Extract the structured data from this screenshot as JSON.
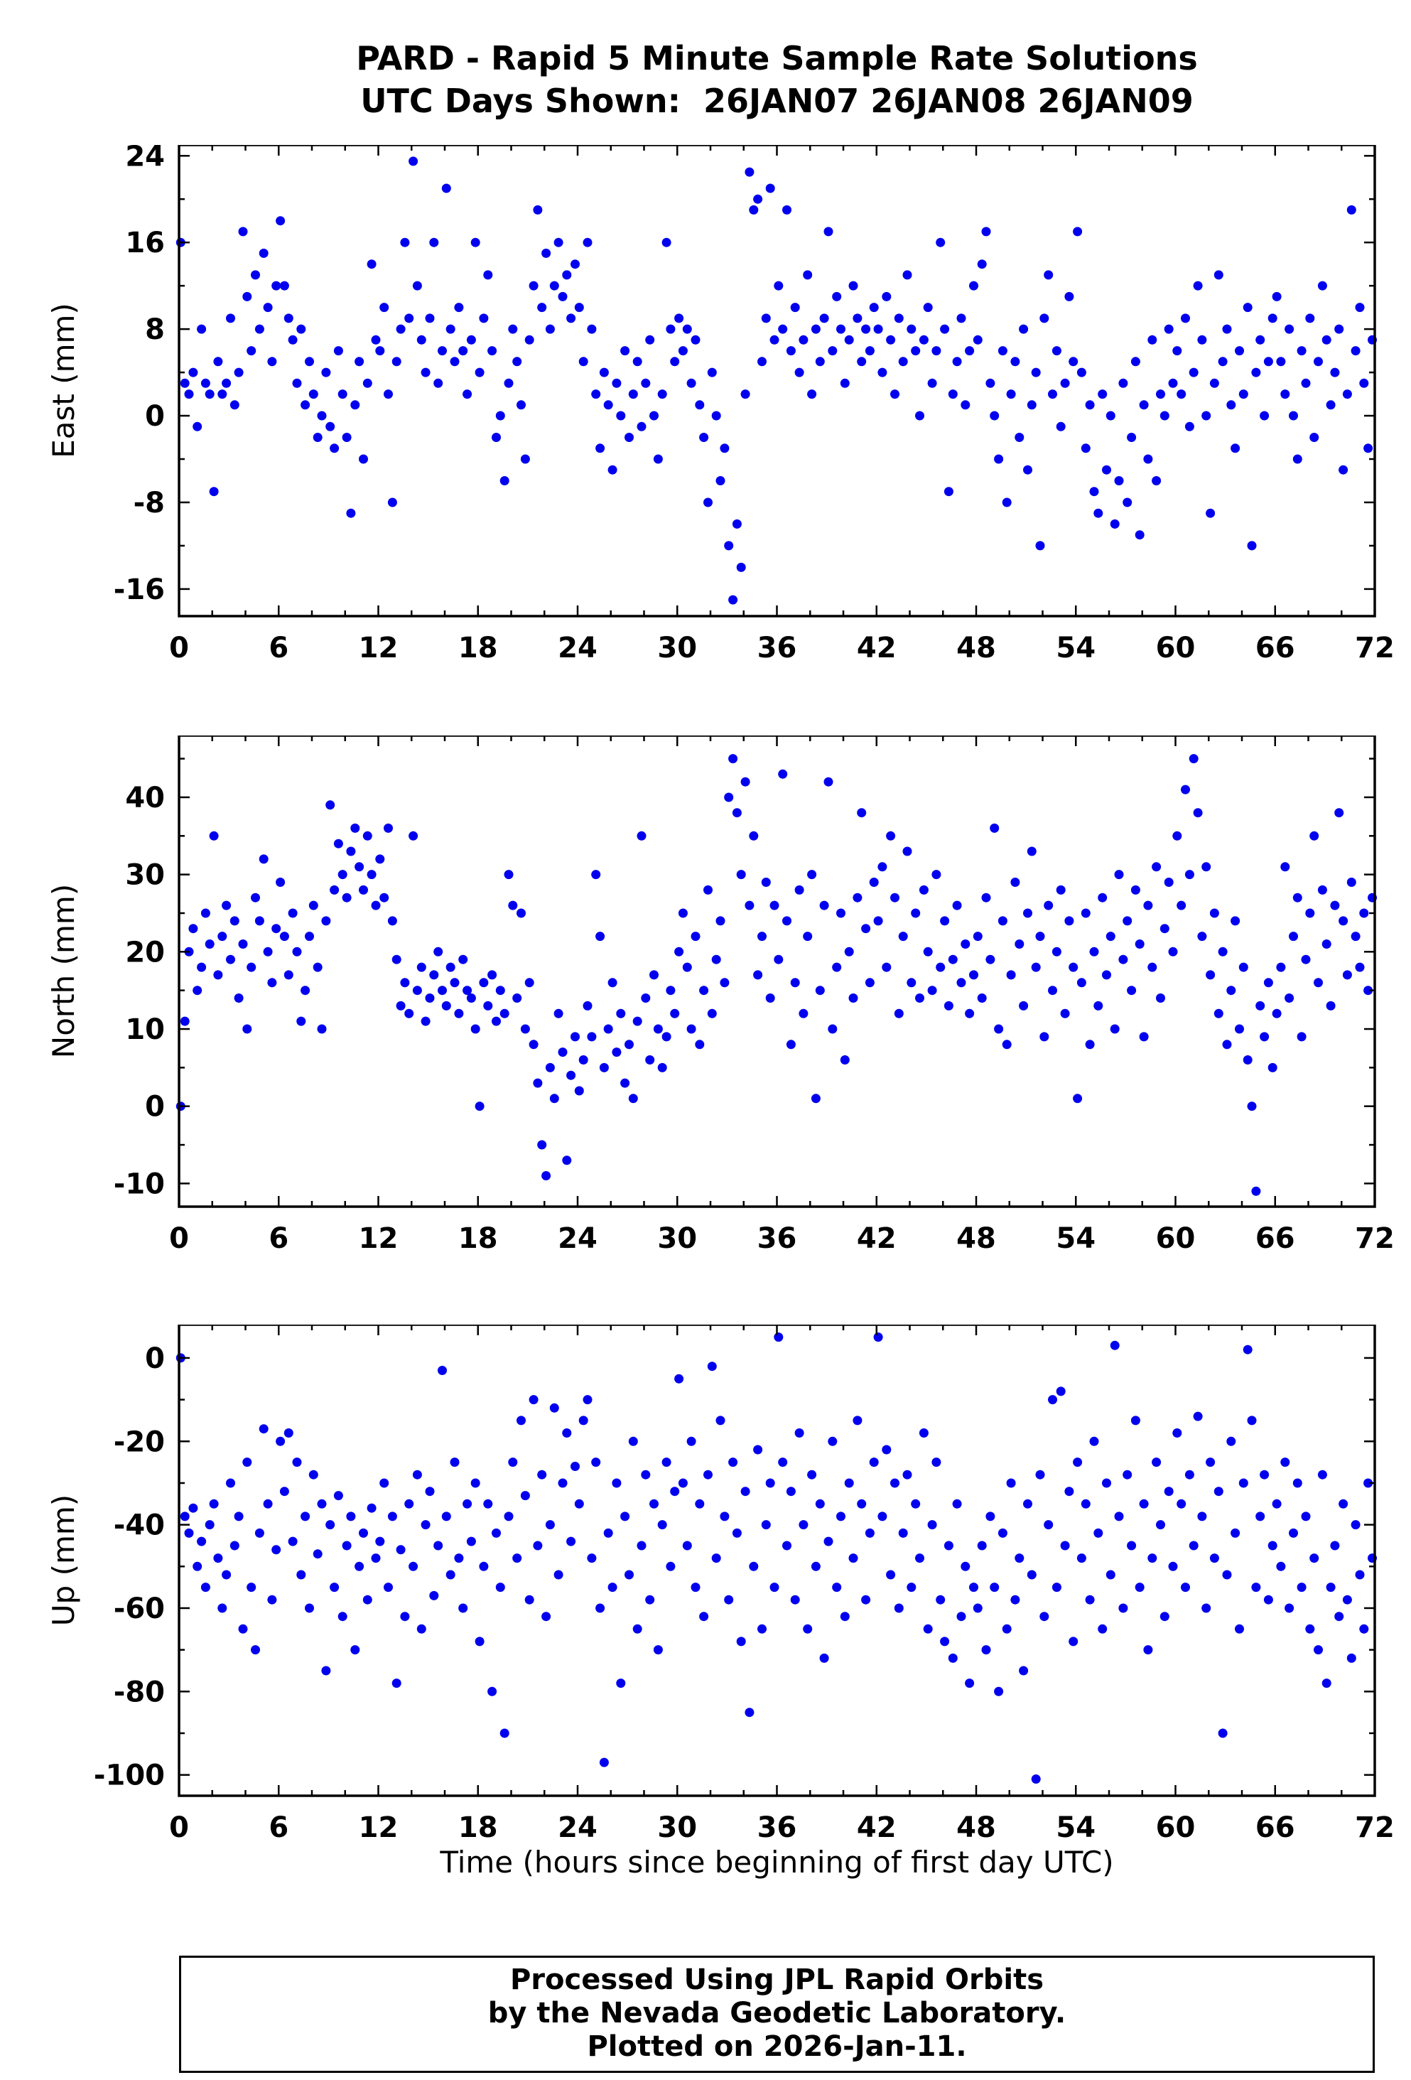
{
  "title": {
    "line1": "PARD - Rapid 5 Minute Sample Rate Solutions",
    "line2": "UTC Days Shown:  26JAN07 26JAN08 26JAN09"
  },
  "xlabel": "Time (hours since beginning of first day UTC)",
  "footer": {
    "line1": "Processed Using JPL Rapid Orbits",
    "line2": "by the Nevada Geodetic Laboratory.",
    "line3": "Plotted on 2026-Jan-11."
  },
  "colors": {
    "point": "#0000EE",
    "frame": "#000000"
  },
  "chart_data": {
    "type": "scatter",
    "x_axis": {
      "label": "Time (hours since beginning of first day UTC)",
      "min": 0,
      "max": 72,
      "ticks": [
        0,
        6,
        12,
        18,
        24,
        30,
        36,
        42,
        48,
        54,
        60,
        66,
        72
      ],
      "minor_step": 2
    },
    "x_start": 0.1,
    "x_step": 0.25,
    "panels": [
      {
        "name": "East",
        "ylabel": "East (mm)",
        "units": "mm",
        "ymin": -18.5,
        "ymax": 25,
        "yticks": [
          -16,
          -8,
          0,
          8,
          16,
          24
        ],
        "minor_step": 4,
        "y": [
          16,
          3,
          2,
          4,
          -1,
          8,
          3,
          2,
          -7,
          5,
          2,
          3,
          9,
          1,
          4,
          17,
          11,
          6,
          13,
          8,
          15,
          10,
          5,
          12,
          18,
          12,
          9,
          7,
          3,
          8,
          1,
          5,
          2,
          -2,
          0,
          4,
          -1,
          -3,
          6,
          2,
          -2,
          -9,
          1,
          5,
          -4,
          3,
          14,
          7,
          6,
          10,
          2,
          -8,
          5,
          8,
          16,
          9,
          23.5,
          12,
          7,
          4,
          9,
          16,
          3,
          6,
          21,
          8,
          5,
          10,
          6,
          2,
          7,
          16,
          4,
          9,
          13,
          6,
          -2,
          0,
          -6,
          3,
          8,
          5,
          1,
          -4,
          7,
          12,
          19,
          10,
          15,
          8,
          12,
          16,
          11,
          13,
          9,
          14,
          10,
          5,
          16,
          8,
          2,
          -3,
          4,
          1,
          -5,
          3,
          0,
          6,
          -2,
          2,
          5,
          -1,
          3,
          7,
          0,
          -4,
          2,
          16,
          8,
          5,
          9,
          6,
          8,
          3,
          7,
          1,
          -2,
          -8,
          4,
          0,
          -6,
          -3,
          -12,
          -17,
          -10,
          -14,
          2,
          22.5,
          19,
          20,
          5,
          9,
          21,
          7,
          12,
          8,
          19,
          6,
          10,
          4,
          7,
          13,
          2,
          8,
          5,
          9,
          17,
          6,
          11,
          8,
          3,
          7,
          12,
          9,
          5,
          8,
          6,
          10,
          8,
          4,
          11,
          7,
          2,
          9,
          5,
          13,
          8,
          6,
          0,
          7,
          10,
          3,
          6,
          16,
          8,
          -7,
          2,
          5,
          9,
          1,
          6,
          12,
          7,
          14,
          17,
          3,
          0,
          -4,
          6,
          -8,
          2,
          5,
          -2,
          8,
          -5,
          1,
          4,
          -12,
          9,
          13,
          2,
          6,
          -1,
          3,
          11,
          5,
          17,
          4,
          -3,
          1,
          -7,
          -9,
          2,
          -5,
          0,
          -10,
          -6,
          3,
          -8,
          -2,
          5,
          -11,
          1,
          -4,
          7,
          -6,
          2,
          0,
          8,
          3,
          6,
          2,
          9,
          -1,
          4,
          12,
          7,
          0,
          -9,
          3,
          13,
          5,
          8,
          1,
          -3,
          6,
          2,
          10,
          -12,
          4,
          7,
          0,
          5,
          9,
          11,
          5,
          2,
          8,
          0,
          -4,
          6,
          3,
          9,
          -2,
          5,
          12,
          7,
          1,
          4,
          8,
          -5,
          2,
          19,
          6,
          10,
          3,
          -3,
          7
        ]
      },
      {
        "name": "North",
        "ylabel": "North (mm)",
        "units": "mm",
        "ymin": -13,
        "ymax": 48,
        "yticks": [
          -10,
          0,
          10,
          20,
          30,
          40
        ],
        "minor_step": 5,
        "y": [
          0,
          11,
          20,
          23,
          15,
          18,
          25,
          21,
          35,
          17,
          22,
          26,
          19,
          24,
          14,
          21,
          10,
          18,
          27,
          24,
          32,
          20,
          16,
          23,
          29,
          22,
          17,
          25,
          20,
          11,
          15,
          22,
          26,
          18,
          10,
          24,
          39,
          28,
          34,
          30,
          27,
          33,
          36,
          31,
          28,
          35,
          30,
          26,
          32,
          27,
          36,
          24,
          19,
          13,
          16,
          12,
          35,
          15,
          18,
          11,
          14,
          17,
          20,
          15,
          13,
          18,
          16,
          12,
          19,
          15,
          14,
          10,
          0,
          16,
          13,
          17,
          11,
          15,
          12,
          30,
          26,
          14,
          25,
          10,
          16,
          8,
          3,
          -5,
          -9,
          5,
          1,
          12,
          7,
          -7,
          4,
          9,
          2,
          6,
          13,
          9,
          30,
          22,
          5,
          10,
          16,
          7,
          12,
          3,
          8,
          1,
          11,
          35,
          14,
          6,
          17,
          10,
          5,
          9,
          15,
          12,
          20,
          25,
          18,
          10,
          22,
          8,
          15,
          28,
          12,
          19,
          24,
          16,
          40,
          45,
          38,
          30,
          42,
          26,
          35,
          17,
          22,
          29,
          14,
          26,
          19,
          43,
          24,
          8,
          16,
          28,
          12,
          22,
          30,
          1,
          15,
          26,
          42,
          10,
          18,
          25,
          6,
          20,
          14,
          27,
          38,
          23,
          16,
          29,
          24,
          31,
          18,
          35,
          27,
          12,
          22,
          33,
          16,
          25,
          14,
          28,
          20,
          15,
          30,
          18,
          24,
          13,
          19,
          26,
          16,
          21,
          12,
          17,
          22,
          14,
          27,
          19,
          36,
          10,
          24,
          8,
          17,
          29,
          21,
          13,
          25,
          33,
          18,
          22,
          9,
          26,
          15,
          20,
          28,
          12,
          24,
          18,
          1,
          16,
          25,
          8,
          20,
          13,
          27,
          17,
          22,
          10,
          30,
          19,
          24,
          15,
          28,
          21,
          9,
          26,
          18,
          31,
          14,
          23,
          29,
          20,
          35,
          26,
          41,
          30,
          45,
          38,
          22,
          31,
          17,
          25,
          12,
          20,
          8,
          15,
          24,
          10,
          18,
          6,
          0,
          -11,
          13,
          9,
          16,
          5,
          12,
          18,
          31,
          14,
          22,
          27,
          9,
          19,
          25,
          35,
          16,
          28,
          21,
          13,
          26,
          38,
          24,
          17,
          29,
          22,
          18,
          25,
          15,
          27
        ]
      },
      {
        "name": "Up",
        "ylabel": "Up (mm)",
        "units": "mm",
        "ymin": -105,
        "ymax": 8,
        "yticks": [
          -100,
          -80,
          -60,
          -40,
          -20,
          0
        ],
        "minor_step": 10,
        "y": [
          0,
          -38,
          -42,
          -36,
          -50,
          -44,
          -55,
          -40,
          -35,
          -48,
          -60,
          -52,
          -30,
          -45,
          -38,
          -65,
          -25,
          -55,
          -70,
          -42,
          -17,
          -35,
          -58,
          -46,
          -20,
          -32,
          -18,
          -44,
          -25,
          -52,
          -38,
          -60,
          -28,
          -47,
          -35,
          -75,
          -40,
          -55,
          -33,
          -62,
          -45,
          -38,
          -70,
          -50,
          -42,
          -58,
          -36,
          -48,
          -44,
          -30,
          -55,
          -38,
          -78,
          -46,
          -62,
          -35,
          -50,
          -28,
          -65,
          -40,
          -32,
          -57,
          -45,
          -3,
          -38,
          -52,
          -25,
          -48,
          -60,
          -35,
          -44,
          -30,
          -68,
          -50,
          -35,
          -80,
          -42,
          -55,
          -90,
          -38,
          -25,
          -48,
          -15,
          -33,
          -58,
          -10,
          -45,
          -28,
          -62,
          -40,
          -12,
          -52,
          -30,
          -18,
          -44,
          -26,
          -35,
          -15,
          -10,
          -48,
          -25,
          -60,
          -97,
          -42,
          -55,
          -30,
          -78,
          -38,
          -52,
          -20,
          -65,
          -45,
          -28,
          -58,
          -35,
          -70,
          -40,
          -25,
          -50,
          -32,
          -5,
          -30,
          -45,
          -20,
          -55,
          -35,
          -62,
          -28,
          -2,
          -48,
          -15,
          -38,
          -58,
          -25,
          -42,
          -68,
          -32,
          -85,
          -50,
          -22,
          -65,
          -40,
          -30,
          -55,
          5,
          -25,
          -45,
          -32,
          -58,
          -18,
          -40,
          -65,
          -28,
          -50,
          -35,
          -72,
          -44,
          -20,
          -55,
          -38,
          -62,
          -30,
          -48,
          -15,
          -35,
          -58,
          -42,
          -25,
          5,
          -38,
          -22,
          -52,
          -30,
          -60,
          -42,
          -28,
          -55,
          -35,
          -48,
          -18,
          -65,
          -40,
          -25,
          -58,
          -68,
          -45,
          -72,
          -35,
          -62,
          -50,
          -78,
          -55,
          -60,
          -45,
          -70,
          -38,
          -55,
          -80,
          -42,
          -65,
          -30,
          -58,
          -48,
          -75,
          -35,
          -52,
          -101,
          -28,
          -62,
          -40,
          -10,
          -55,
          -8,
          -45,
          -32,
          -68,
          -25,
          -48,
          -35,
          -58,
          -20,
          -42,
          -65,
          -30,
          -52,
          3,
          -38,
          -60,
          -28,
          -45,
          -15,
          -55,
          -35,
          -70,
          -48,
          -25,
          -40,
          -62,
          -32,
          -50,
          -18,
          -35,
          -55,
          -28,
          -45,
          -14,
          -38,
          -60,
          -25,
          -48,
          -32,
          -90,
          -52,
          -20,
          -42,
          -65,
          -30,
          2,
          -15,
          -55,
          -38,
          -28,
          -58,
          -45,
          -35,
          -50,
          -25,
          -60,
          -42,
          -30,
          -55,
          -38,
          -65,
          -48,
          -70,
          -28,
          -78,
          -55,
          -45,
          -62,
          -35,
          -58,
          -72,
          -40,
          -52,
          -65,
          -30,
          -48
        ]
      }
    ]
  }
}
